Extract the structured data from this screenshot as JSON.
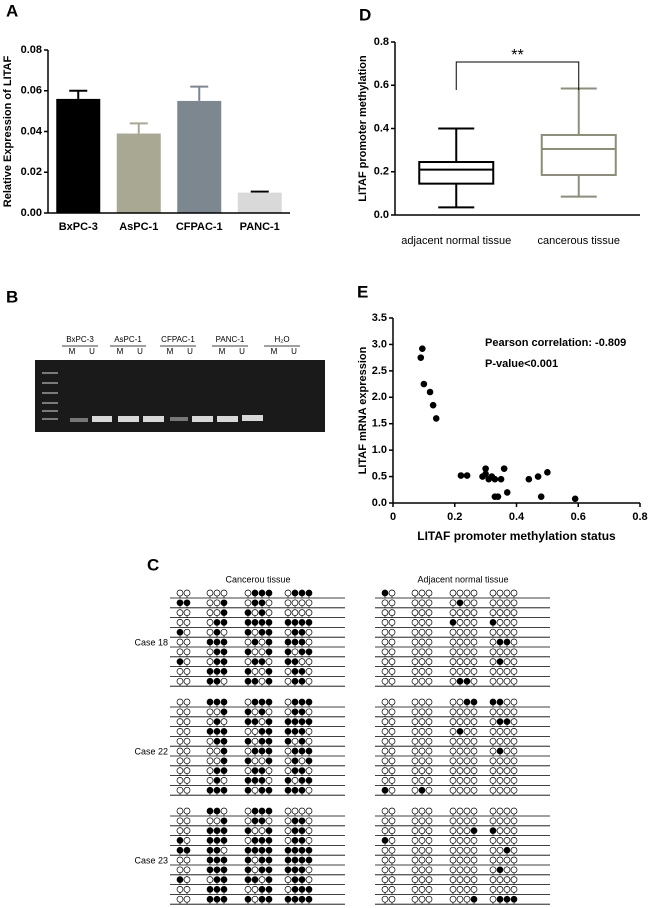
{
  "chart_data": [
    {
      "type": "bar",
      "panel": "A",
      "ylabel": "Relative Expression of LITAF",
      "categories": [
        "BxPC-3",
        "AsPC-1",
        "CFPAC-1",
        "PANC-1"
      ],
      "values": [
        0.056,
        0.039,
        0.055,
        0.01
      ],
      "errors": [
        0.004,
        0.005,
        0.007,
        0.0005
      ],
      "colors": [
        "#000000",
        "#a9a892",
        "#7c8790",
        "#d9d9d9"
      ],
      "ylim": [
        0,
        0.08
      ],
      "yticks": [
        {
          "value": 0,
          "label": "0.00"
        },
        {
          "value": 0.02,
          "label": "0.02"
        },
        {
          "value": 0.04,
          "label": "0.04"
        },
        {
          "value": 0.06,
          "label": "0.06"
        },
        {
          "value": 0.08,
          "label": "0.08"
        }
      ]
    },
    {
      "type": "box",
      "panel": "D",
      "ylabel": "LITAF promoter methylation",
      "categories": [
        "adjacent normal tissue",
        "cancerous tissue"
      ],
      "boxes": [
        {
          "min": 0.035,
          "q1": 0.145,
          "median": 0.21,
          "q3": 0.245,
          "max": 0.4
        },
        {
          "min": 0.085,
          "q1": 0.185,
          "median": 0.305,
          "q3": 0.37,
          "max": 0.585
        }
      ],
      "colors": [
        "#000000",
        "#8e8e78"
      ],
      "annotation": "**",
      "ylim": [
        0,
        0.8
      ],
      "yticks": [
        {
          "value": 0,
          "label": "0.0"
        },
        0.2,
        0.4,
        0.6,
        0.8
      ]
    },
    {
      "type": "scatter",
      "panel": "E",
      "xlabel": "LITAF promoter methylation status",
      "ylabel": "LITAF mRNA expression",
      "annotations": [
        "Pearson correlation: -0.809",
        "P-value<0.001"
      ],
      "x": [
        0.09,
        0.095,
        0.1,
        0.12,
        0.13,
        0.14,
        0.22,
        0.24,
        0.29,
        0.3,
        0.3,
        0.31,
        0.32,
        0.33,
        0.33,
        0.34,
        0.36,
        0.37,
        0.35,
        0.44,
        0.47,
        0.48,
        0.5,
        0.59
      ],
      "values": [
        2.75,
        2.92,
        2.25,
        2.1,
        1.85,
        1.6,
        0.52,
        0.52,
        0.5,
        0.55,
        0.65,
        0.45,
        0.5,
        0.45,
        0.12,
        0.12,
        0.65,
        0.2,
        0.45,
        0.45,
        0.5,
        0.12,
        0.58,
        0.08
      ],
      "color": "#000000",
      "xlim": [
        0,
        0.8
      ],
      "xticks": [
        0,
        0.2,
        0.4,
        0.6,
        0.8
      ],
      "ylim": [
        0,
        3.5
      ],
      "yticks": [
        {
          "value": 0,
          "label": "0.0"
        },
        0.5,
        {
          "value": 1,
          "label": "1.0"
        },
        1.5,
        {
          "value": 2,
          "label": "2.0"
        },
        2.5,
        {
          "value": 3,
          "label": "3.0"
        },
        3.5
      ]
    }
  ],
  "gel": {
    "panel": "B",
    "lanes": [
      "BxPC-3",
      "AsPC-1",
      "CFPAC-1",
      "PANC-1",
      "H₂O"
    ],
    "sublabels": [
      "M",
      "U"
    ]
  },
  "methylation": {
    "panel": "C",
    "titles": [
      "Cancerou tissue",
      "Adjacent normal tissue"
    ],
    "cases": [
      {
        "label": "Case 18",
        "cancer": [
          "00 000 0111 0111",
          "11 001 0110 0000",
          "00 001 1010 0000",
          "00 011 1111 1111",
          "10 010 1011 0110",
          "00 111 0101 1110",
          "00 011 1001 1011",
          "10 011 0110 1100",
          "00 111 1001 0110",
          "00 110 1101 0110"
        ],
        "normal": [
          "10 000 0000 0000",
          "00 000 0100 0000",
          "00 000 0000 0000",
          "00 000 1000 1000",
          "00 000 0000 0000",
          "00 000 0000 0110",
          "00 000 0000 0000",
          "00 000 0000 0100",
          "00 000 0000 0000",
          "00 000 0110 0000"
        ]
      },
      {
        "label": "Case 22",
        "cancer": [
          "00 111 0111 0111",
          "00 001 1010 0110",
          "00 010 1101 1111",
          "00 111 0011 1110",
          "00 011 1011 1010",
          "00 001 0111 0111",
          "00 001 1001 0101",
          "00 011 0110 0110",
          "00 010 1110 1011",
          "00 111 1011 1110"
        ],
        "normal": [
          "00 000 0011 1100",
          "00 000 0000 0000",
          "00 000 0000 0110",
          "00 000 0100 0000",
          "00 000 0000 0000",
          "00 000 0000 0100",
          "00 000 0000 0000",
          "00 000 0000 0000",
          "00 000 0000 0000",
          "10 010 0000 0000"
        ]
      },
      {
        "label": "Case 23",
        "cancer": [
          "00 110 0111 0000",
          "00 001 0110 0110",
          "00 111 1001 0110",
          "10 111 0111 0110",
          "11 110 1111 1111",
          "00 111 1011 1111",
          "00 111 1011 1110",
          "10 011 1101 0110",
          "00 111 0011 0111",
          "00 111 1011 1111"
        ],
        "normal": [
          "00 000 0000 0000",
          "00 000 0000 0000",
          "00 000 0001 1000",
          "10 000 0000 0000",
          "00 000 0000 0010",
          "00 000 0000 0000",
          "00 000 0000 0100",
          "00 000 0000 0000",
          "00 000 0000 0000",
          "00 000 0001 0111"
        ]
      }
    ]
  }
}
